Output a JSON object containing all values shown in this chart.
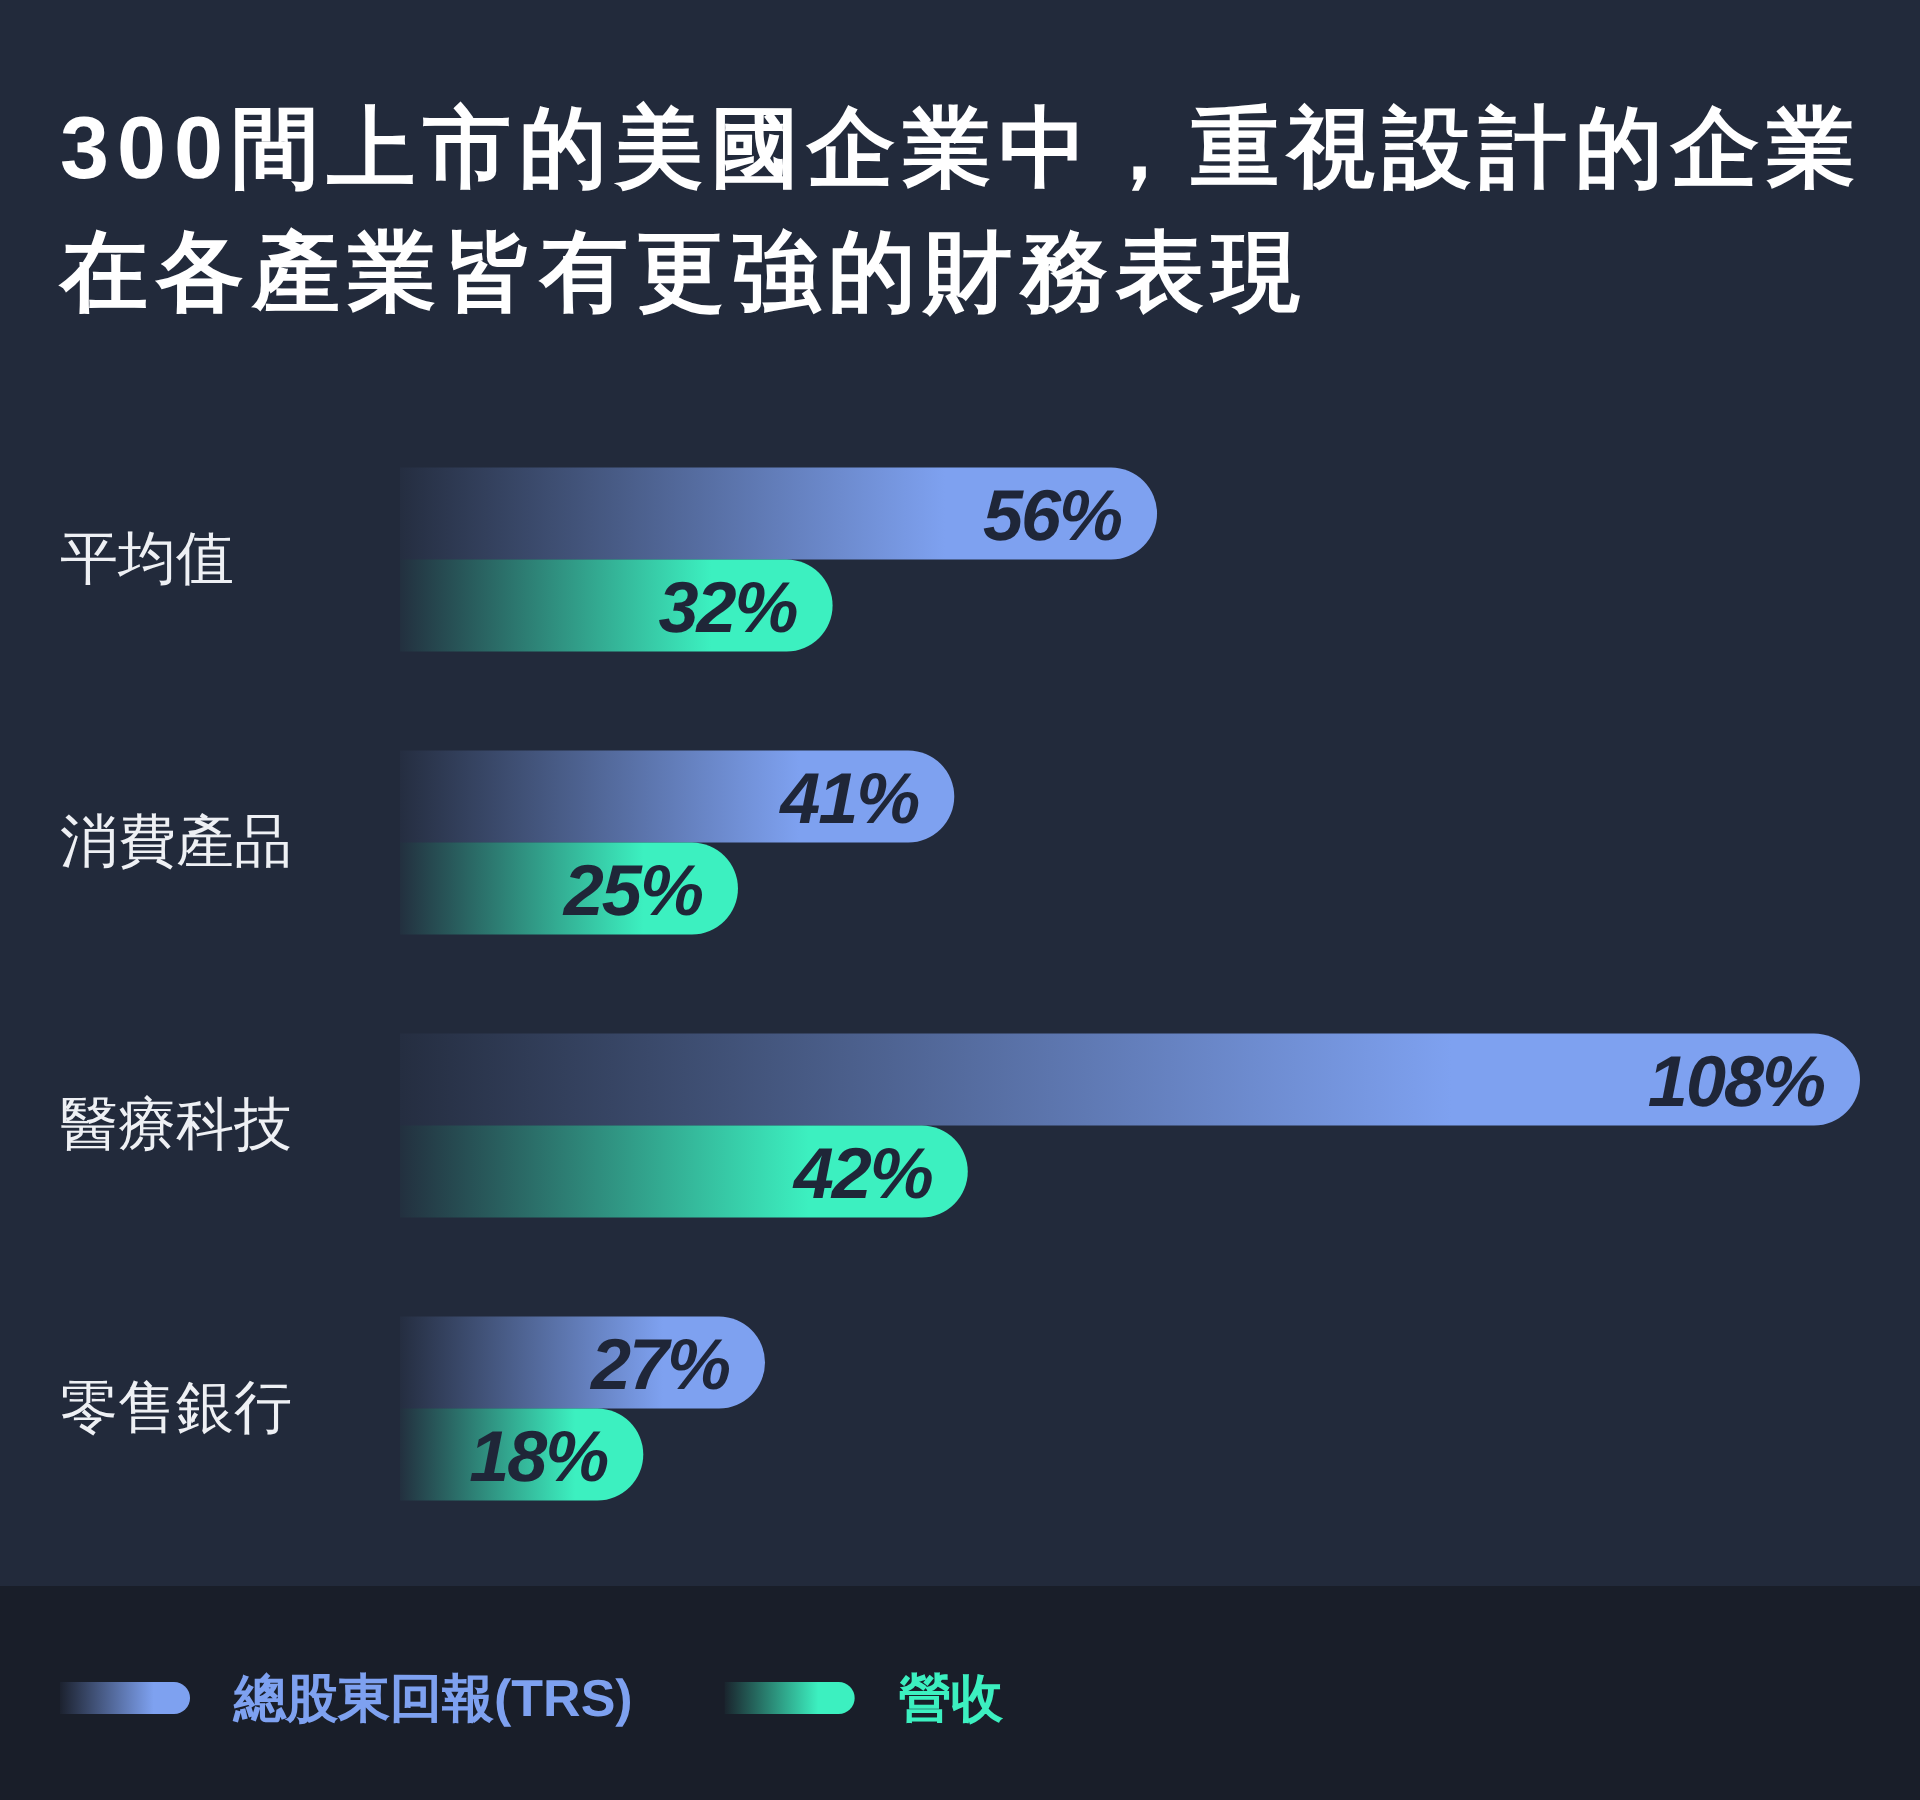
{
  "chart_data": {
    "type": "bar",
    "orientation": "horizontal",
    "title": "300間上市的美國企業中，重視設計的企業在各產業皆有更強的財務表現",
    "categories": [
      "平均值",
      "消費產品",
      "醫療科技",
      "零售銀行"
    ],
    "series": [
      {
        "name": "總股東回報(TRS)",
        "color": "#7ea1f0",
        "values": [
          56,
          41,
          108,
          27
        ],
        "value_labels": [
          "56%",
          "41%",
          "108%",
          "27%"
        ]
      },
      {
        "name": "營收",
        "color": "#3cf0c0",
        "values": [
          32,
          25,
          42,
          18
        ],
        "value_labels": [
          "32%",
          "25%",
          "42%",
          "18%"
        ]
      }
    ],
    "legend": "bottom"
  }
}
